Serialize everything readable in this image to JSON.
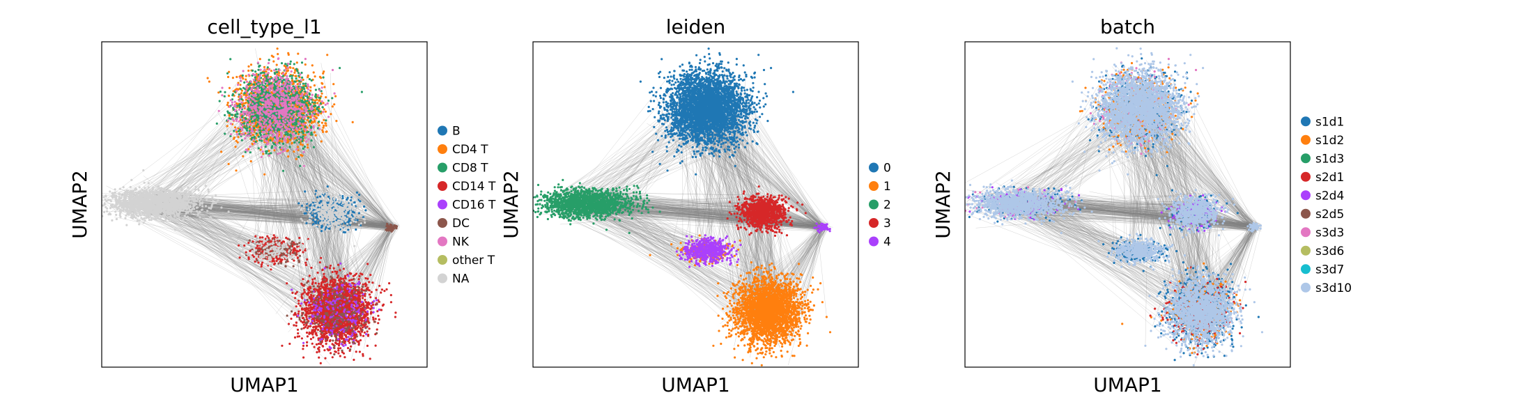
{
  "chart_data": [
    {
      "type": "scatter",
      "title": "cell_type_l1",
      "xlabel": "UMAP1",
      "ylabel": "UMAP2",
      "grid": false,
      "legend_position": "right",
      "series": [
        {
          "name": "B",
          "color": "#1f77b4"
        },
        {
          "name": "CD4 T",
          "color": "#ff7f0e"
        },
        {
          "name": "CD8 T",
          "color": "#279e68"
        },
        {
          "name": "CD14 T",
          "color": "#d62728"
        },
        {
          "name": "CD16 T",
          "color": "#aa40fc"
        },
        {
          "name": "DC",
          "color": "#8c564b"
        },
        {
          "name": "NK",
          "color": "#e377c2"
        },
        {
          "name": "other T",
          "color": "#b5bd61"
        },
        {
          "name": "NA",
          "color": "#d3d3d3"
        }
      ]
    },
    {
      "type": "scatter",
      "title": "leiden",
      "xlabel": "UMAP1",
      "ylabel": "UMAP2",
      "grid": false,
      "legend_position": "right",
      "series": [
        {
          "name": "0",
          "color": "#1f77b4"
        },
        {
          "name": "1",
          "color": "#ff7f0e"
        },
        {
          "name": "2",
          "color": "#279e68"
        },
        {
          "name": "3",
          "color": "#d62728"
        },
        {
          "name": "4",
          "color": "#aa40fc"
        }
      ]
    },
    {
      "type": "scatter",
      "title": "batch",
      "xlabel": "UMAP1",
      "ylabel": "UMAP2",
      "grid": false,
      "legend_position": "right",
      "series": [
        {
          "name": "s1d1",
          "color": "#1f77b4"
        },
        {
          "name": "s1d2",
          "color": "#ff7f0e"
        },
        {
          "name": "s1d3",
          "color": "#279e68"
        },
        {
          "name": "s2d1",
          "color": "#d62728"
        },
        {
          "name": "s2d4",
          "color": "#aa40fc"
        },
        {
          "name": "s2d5",
          "color": "#8c564b"
        },
        {
          "name": "s3d3",
          "color": "#e377c2"
        },
        {
          "name": "s3d6",
          "color": "#b5bd61"
        },
        {
          "name": "s3d7",
          "color": "#17becf"
        },
        {
          "name": "s3d10",
          "color": "#aec7e8"
        }
      ]
    }
  ],
  "edge_color": "#808080"
}
